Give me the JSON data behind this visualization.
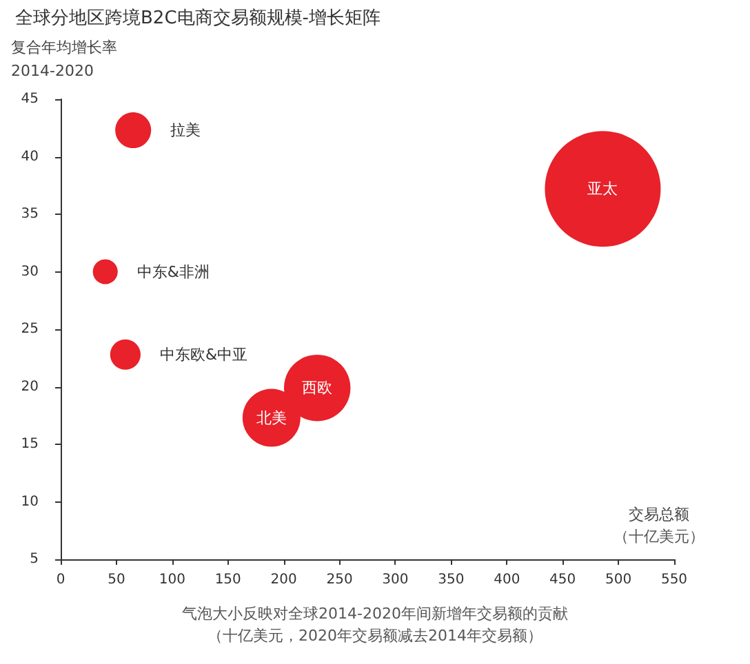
{
  "chart_data": {
    "type": "bubble",
    "title": "全球分地区跨境B2C电商交易额规模-增长矩阵",
    "ylabel": "复合年均增长率\n2014-2020",
    "xlabel": "交易总额",
    "annotations": [
      "（十亿美元）",
      "气泡大小反映对全球2014-2020年间新增年交易额的贡献",
      "（十亿美元，2020年交易额减去2014年交易额）"
    ],
    "xlim": [
      0,
      550
    ],
    "xticks": [
      0,
      50,
      100,
      150,
      200,
      250,
      300,
      350,
      400,
      450,
      500,
      550
    ],
    "ylim": [
      5,
      45
    ],
    "yticks": [
      5,
      10,
      15,
      20,
      25,
      30,
      35,
      40,
      45
    ],
    "grid": false,
    "legend": false,
    "series": [
      {
        "name": "拉美",
        "color": "#e8212a",
        "x": [
          65
        ],
        "values": [
          42.3
        ],
        "sizes": [
          0.096
        ]
      },
      {
        "name": "亚太",
        "color": "#e8212a",
        "x": [
          486
        ],
        "values": [
          37.2
        ],
        "sizes": [
          1
        ]
      },
      {
        "name": "中东&非洲",
        "color": "#e8212a",
        "x": [
          40
        ],
        "values": [
          30
        ],
        "sizes": [
          0.046
        ]
      },
      {
        "name": "中东欧&中亚",
        "color": "#e8212a",
        "x": [
          58
        ],
        "values": [
          22.8
        ],
        "sizes": [
          0.069
        ]
      },
      {
        "name": "西欧",
        "color": "#e8212a",
        "x": [
          230
        ],
        "values": [
          19.9
        ],
        "sizes": [
          0.33
        ]
      },
      {
        "name": "北美",
        "color": "#e8212a",
        "x": [
          189
        ],
        "values": [
          17.3
        ],
        "sizes": [
          0.25
        ]
      }
    ]
  }
}
